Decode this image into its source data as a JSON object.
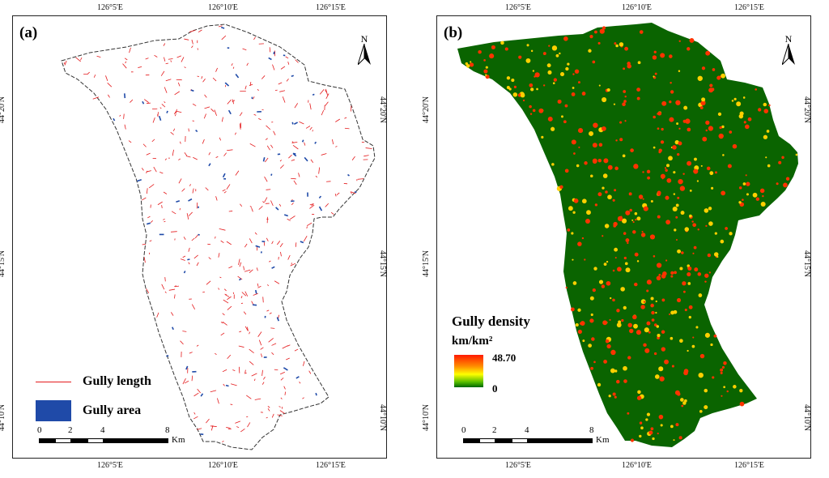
{
  "panel_a": {
    "label": "(a)",
    "north": "N",
    "ticks_top": [
      "126°5'E",
      "126°10'E",
      "126°15'E"
    ],
    "ticks_bottom": [
      "126°5'E",
      "126°10'E",
      "126°15'E"
    ],
    "ticks_left": [
      "44°20'N",
      "44°15'N",
      "44°10'N"
    ],
    "ticks_right": [
      "44°20'N",
      "44°15'N",
      "44°10'N"
    ],
    "legend": {
      "line_label": "Gully length",
      "area_label": "Gully area"
    },
    "scale": {
      "n0": "0",
      "n2": "2",
      "n4": "4",
      "n8": "8",
      "unit": "Km"
    },
    "colors": {
      "line": "#e41a1c",
      "area": "#1f4aa8"
    }
  },
  "panel_b": {
    "label": "(b)",
    "north": "N",
    "ticks_top": [
      "126°5'E",
      "126°10'E",
      "126°15'E"
    ],
    "ticks_bottom": [
      "126°5'E",
      "126°10'E",
      "126°15'E"
    ],
    "ticks_left": [
      "44°20'N",
      "44°15'N",
      "44°10'N"
    ],
    "ticks_right": [
      "44°20'N",
      "44°15'N",
      "44°10'N"
    ],
    "legend": {
      "title": "Gully density",
      "unit": "km/km²",
      "max": "48.70",
      "min": "0"
    },
    "scale": {
      "n0": "0",
      "n2": "2",
      "n4": "4",
      "n8": "8",
      "unit": "Km"
    },
    "colors": {
      "base": "#0a6400",
      "hot": "#ff3300",
      "mid": "#ffd000"
    }
  }
}
